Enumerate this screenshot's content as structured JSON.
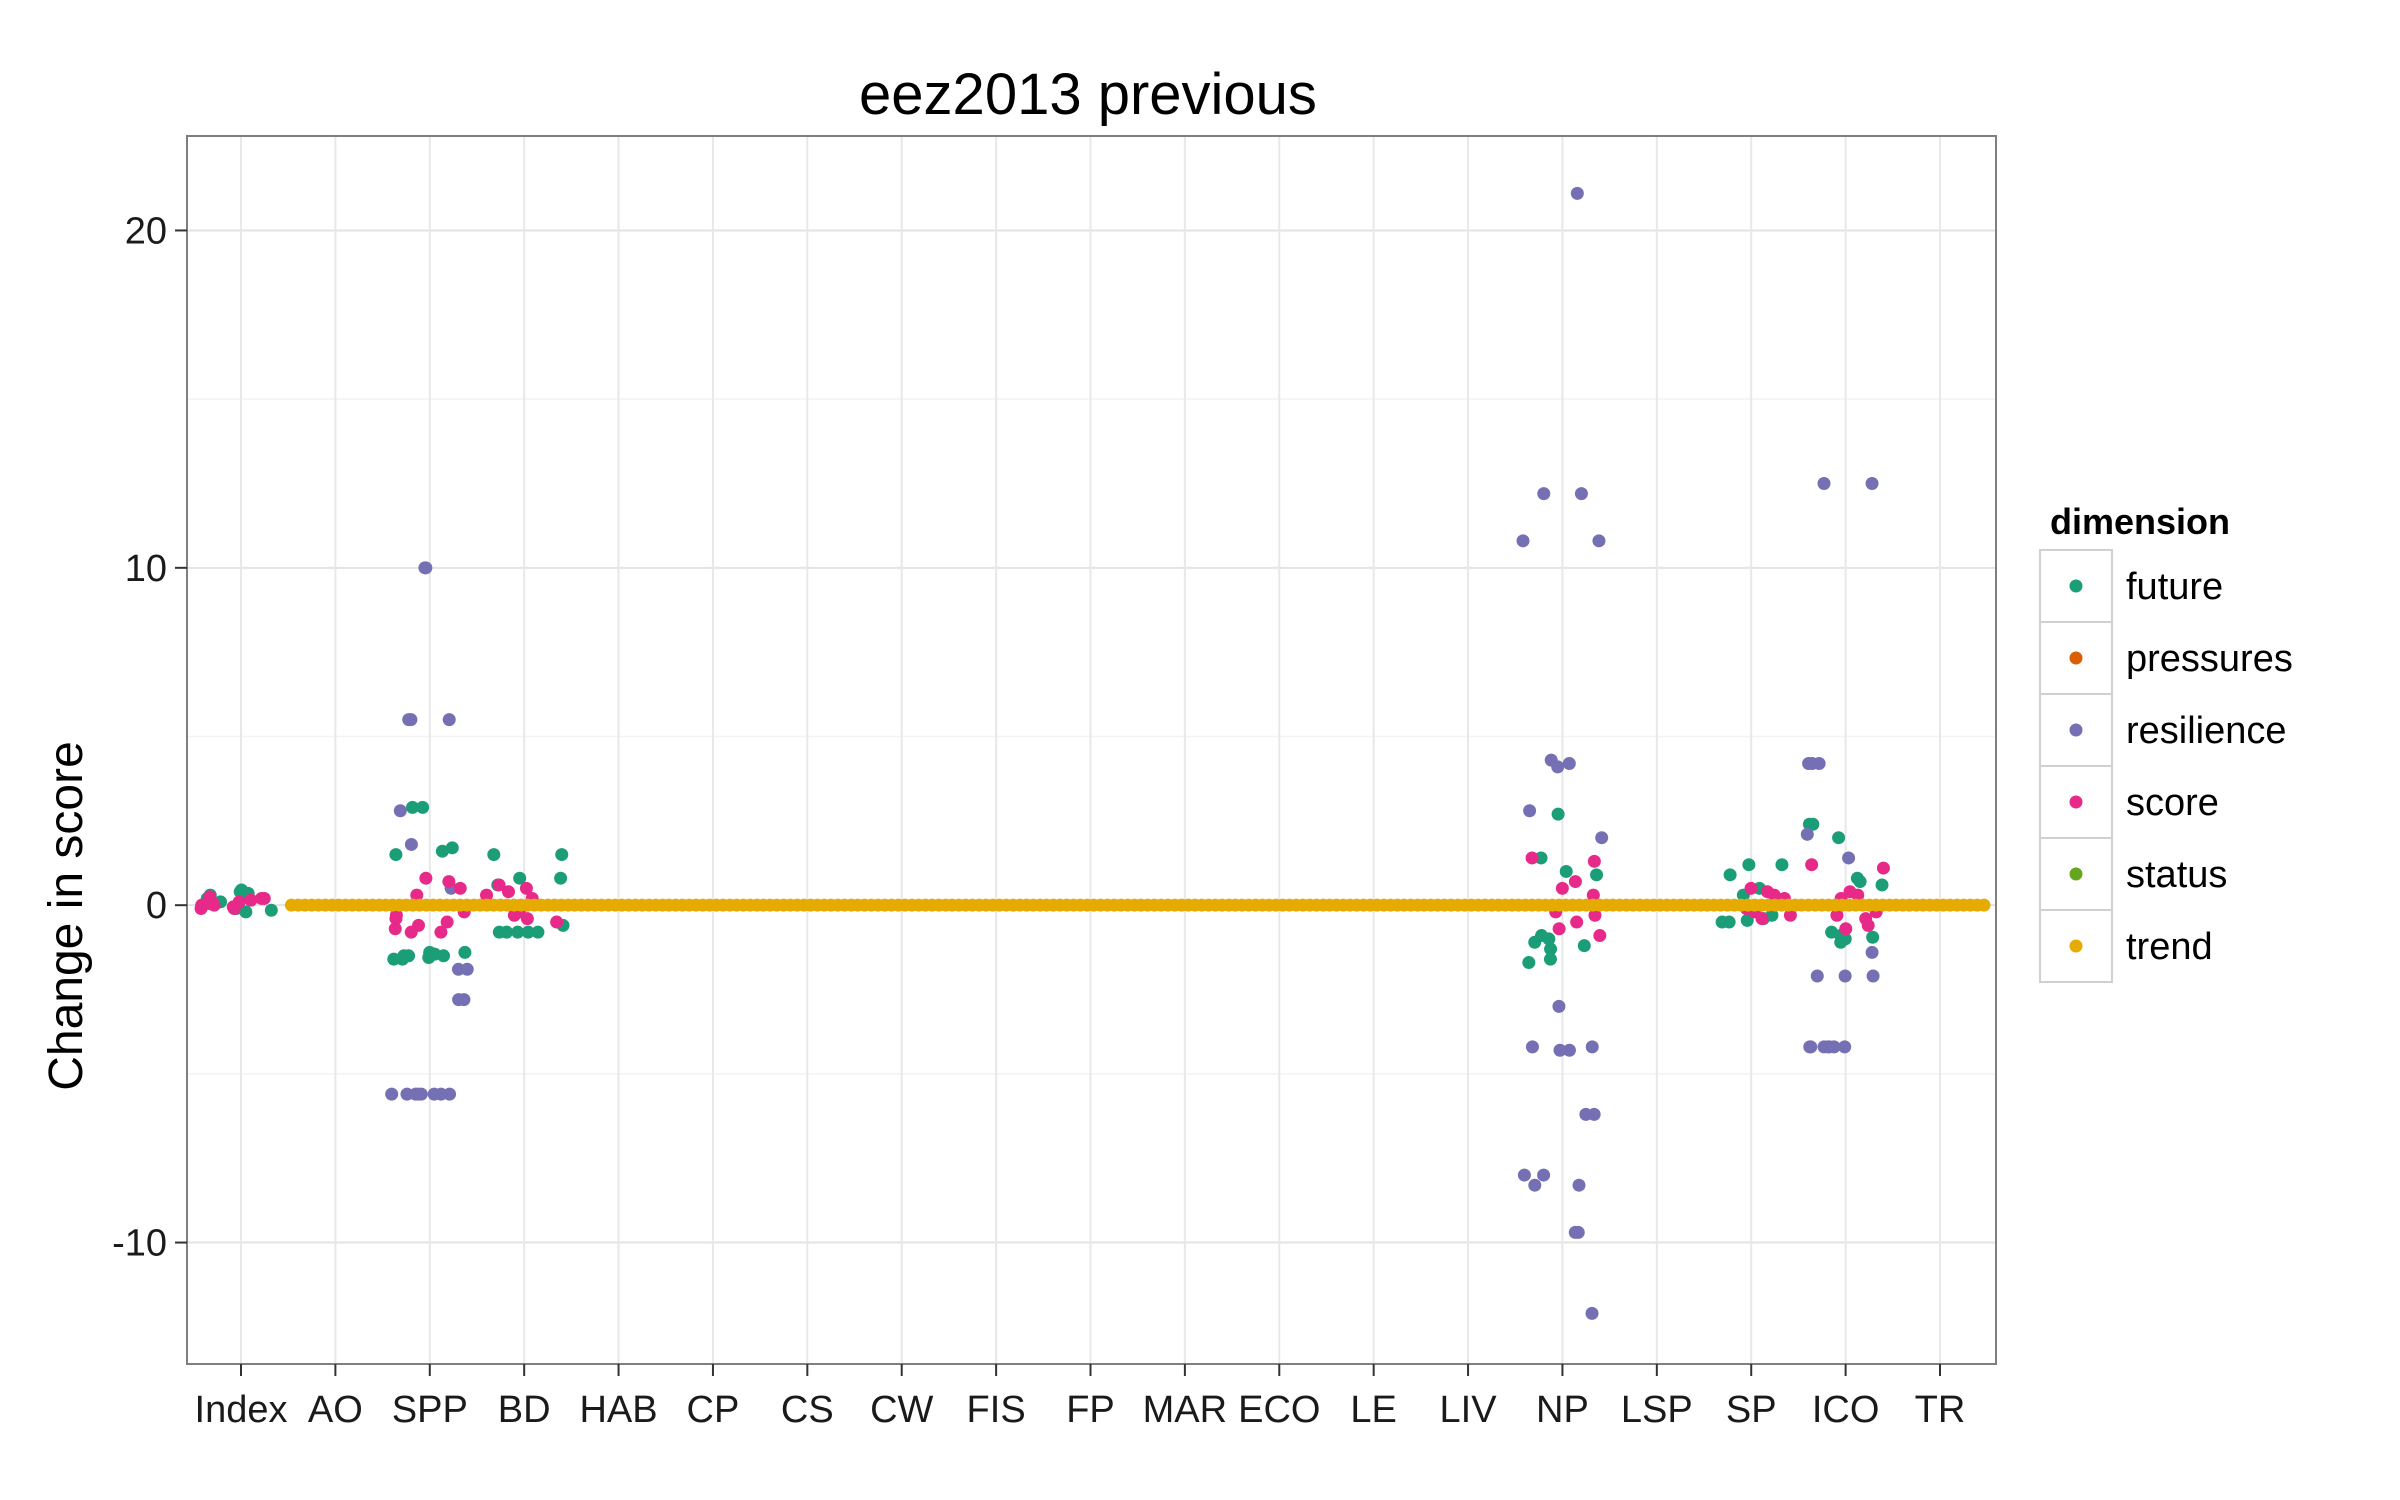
{
  "chart_data": {
    "type": "scatter",
    "title": "eez2013 previous",
    "xlabel": "",
    "ylabel": "Change in score",
    "ylim": [
      -13.6,
      22.8
    ],
    "yticks": [
      -10,
      0,
      10,
      20
    ],
    "grid": true,
    "legend_position": "right",
    "categories": [
      "Index",
      "AO",
      "SPP",
      "BD",
      "HAB",
      "CP",
      "CS",
      "CW",
      "FIS",
      "FP",
      "MAR",
      "ECO",
      "LE",
      "LIV",
      "NP",
      "LSP",
      "SP",
      "ICO",
      "TR"
    ],
    "legend": {
      "title": "dimension",
      "entries": [
        {
          "name": "future",
          "color": "#1b9e77"
        },
        {
          "name": "pressures",
          "color": "#d95f02"
        },
        {
          "name": "resilience",
          "color": "#7570b3"
        },
        {
          "name": "score",
          "color": "#e7298a"
        },
        {
          "name": "status",
          "color": "#66a61e"
        },
        {
          "name": "trend",
          "color": "#e6ab02"
        }
      ]
    },
    "series": [
      {
        "name": "future",
        "color": "#1b9e77",
        "points": [
          [
            "Index",
            0.4
          ],
          [
            "Index",
            -0.2
          ],
          [
            "Index",
            0.3
          ],
          [
            "Index",
            0.1
          ],
          [
            "Index",
            -0.1
          ],
          [
            "Index",
            0.45
          ],
          [
            "Index",
            0.2
          ],
          [
            "Index",
            -0.15
          ],
          [
            "Index",
            0.35
          ],
          [
            "SPP",
            2.9
          ],
          [
            "SPP",
            2.9
          ],
          [
            "SPP",
            1.7
          ],
          [
            "SPP",
            1.6
          ],
          [
            "SPP",
            1.5
          ],
          [
            "SPP",
            -1.4
          ],
          [
            "SPP",
            -1.5
          ],
          [
            "SPP",
            -1.5
          ],
          [
            "SPP",
            -1.6
          ],
          [
            "SPP",
            -1.45
          ],
          [
            "SPP",
            -1.55
          ],
          [
            "SPP",
            -1.5
          ],
          [
            "SPP",
            -1.6
          ],
          [
            "SPP",
            -1.4
          ],
          [
            "BD",
            1.5
          ],
          [
            "BD",
            1.5
          ],
          [
            "BD",
            0.8
          ],
          [
            "BD",
            0.8
          ],
          [
            "BD",
            -0.8
          ],
          [
            "BD",
            -0.8
          ],
          [
            "BD",
            -0.8
          ],
          [
            "BD",
            -0.8
          ],
          [
            "BD",
            -0.8
          ],
          [
            "BD",
            0.6
          ],
          [
            "BD",
            -0.6
          ],
          [
            "NP",
            2.7
          ],
          [
            "NP",
            1.4
          ],
          [
            "NP",
            1.0
          ],
          [
            "NP",
            -1.0
          ],
          [
            "NP",
            -1.1
          ],
          [
            "NP",
            -1.2
          ],
          [
            "NP",
            -1.3
          ],
          [
            "NP",
            -1.6
          ],
          [
            "NP",
            -1.7
          ],
          [
            "NP",
            0.9
          ],
          [
            "NP",
            -0.9
          ],
          [
            "SP",
            1.2
          ],
          [
            "SP",
            1.2
          ],
          [
            "SP",
            0.9
          ],
          [
            "SP",
            0.5
          ],
          [
            "SP",
            0.3
          ],
          [
            "SP",
            -0.3
          ],
          [
            "SP",
            -0.4
          ],
          [
            "SP",
            -0.5
          ],
          [
            "SP",
            -0.5
          ],
          [
            "SP",
            -0.45
          ],
          [
            "ICO",
            2.4
          ],
          [
            "ICO",
            2.4
          ],
          [
            "ICO",
            2.0
          ],
          [
            "ICO",
            0.7
          ],
          [
            "ICO",
            0.8
          ],
          [
            "ICO",
            0.6
          ],
          [
            "ICO",
            -0.8
          ],
          [
            "ICO",
            -0.9
          ],
          [
            "ICO",
            -1.0
          ],
          [
            "ICO",
            -1.1
          ],
          [
            "ICO",
            -0.95
          ]
        ]
      },
      {
        "name": "resilience",
        "color": "#7570b3",
        "points": [
          [
            "SPP",
            10.0
          ],
          [
            "SPP",
            10.0
          ],
          [
            "SPP",
            5.5
          ],
          [
            "SPP",
            5.5
          ],
          [
            "SPP",
            5.5
          ],
          [
            "SPP",
            2.8
          ],
          [
            "SPP",
            1.8
          ],
          [
            "SPP",
            0.5
          ],
          [
            "SPP",
            -1.9
          ],
          [
            "SPP",
            -1.9
          ],
          [
            "SPP",
            -2.8
          ],
          [
            "SPP",
            -2.8
          ],
          [
            "SPP",
            -5.6
          ],
          [
            "SPP",
            -5.6
          ],
          [
            "SPP",
            -5.6
          ],
          [
            "SPP",
            -5.6
          ],
          [
            "SPP",
            -5.6
          ],
          [
            "SPP",
            -5.6
          ],
          [
            "SPP",
            -5.6
          ],
          [
            "SPP",
            -5.6
          ],
          [
            "NP",
            21.1
          ],
          [
            "NP",
            12.2
          ],
          [
            "NP",
            12.2
          ],
          [
            "NP",
            10.8
          ],
          [
            "NP",
            10.8
          ],
          [
            "NP",
            4.3
          ],
          [
            "NP",
            4.2
          ],
          [
            "NP",
            4.1
          ],
          [
            "NP",
            2.8
          ],
          [
            "NP",
            2.0
          ],
          [
            "NP",
            -3.0
          ],
          [
            "NP",
            -4.2
          ],
          [
            "NP",
            -4.3
          ],
          [
            "NP",
            -4.3
          ],
          [
            "NP",
            -4.2
          ],
          [
            "NP",
            -6.2
          ],
          [
            "NP",
            -6.2
          ],
          [
            "NP",
            -8.0
          ],
          [
            "NP",
            -8.0
          ],
          [
            "NP",
            -8.3
          ],
          [
            "NP",
            -8.3
          ],
          [
            "NP",
            -9.7
          ],
          [
            "NP",
            -9.7
          ],
          [
            "NP",
            -12.1
          ],
          [
            "ICO",
            12.5
          ],
          [
            "ICO",
            12.5
          ],
          [
            "ICO",
            4.2
          ],
          [
            "ICO",
            4.2
          ],
          [
            "ICO",
            4.2
          ],
          [
            "ICO",
            2.1
          ],
          [
            "ICO",
            1.4
          ],
          [
            "ICO",
            -1.4
          ],
          [
            "ICO",
            -2.1
          ],
          [
            "ICO",
            -2.1
          ],
          [
            "ICO",
            -2.1
          ],
          [
            "ICO",
            -4.2
          ],
          [
            "ICO",
            -4.2
          ],
          [
            "ICO",
            -4.2
          ],
          [
            "ICO",
            -4.2
          ],
          [
            "ICO",
            -4.2
          ],
          [
            "ICO",
            -4.2
          ],
          [
            "ICO",
            -4.2
          ]
        ]
      },
      {
        "name": "score",
        "color": "#e7298a",
        "points": [
          [
            "Index",
            0.2
          ],
          [
            "Index",
            0.1
          ],
          [
            "Index",
            0.0
          ],
          [
            "Index",
            -0.1
          ],
          [
            "Index",
            0.15
          ],
          [
            "Index",
            0.05
          ],
          [
            "Index",
            -0.05
          ],
          [
            "Index",
            0.25
          ],
          [
            "Index",
            0.1
          ],
          [
            "Index",
            -0.1
          ],
          [
            "Index",
            0.0
          ],
          [
            "Index",
            0.2
          ],
          [
            "SPP",
            0.8
          ],
          [
            "SPP",
            0.7
          ],
          [
            "SPP",
            0.3
          ],
          [
            "SPP",
            -0.2
          ],
          [
            "SPP",
            -0.5
          ],
          [
            "SPP",
            -0.8
          ],
          [
            "SPP",
            -0.8
          ],
          [
            "SPP",
            -0.6
          ],
          [
            "SPP",
            -0.4
          ],
          [
            "SPP",
            0.5
          ],
          [
            "SPP",
            -0.3
          ],
          [
            "SPP",
            -0.7
          ],
          [
            "BD",
            0.6
          ],
          [
            "BD",
            0.4
          ],
          [
            "BD",
            0.3
          ],
          [
            "BD",
            0.2
          ],
          [
            "BD",
            -0.2
          ],
          [
            "BD",
            -0.3
          ],
          [
            "BD",
            -0.4
          ],
          [
            "BD",
            -0.5
          ],
          [
            "BD",
            0.5
          ],
          [
            "BD",
            -0.2
          ],
          [
            "NP",
            1.4
          ],
          [
            "NP",
            1.3
          ],
          [
            "NP",
            0.7
          ],
          [
            "NP",
            0.5
          ],
          [
            "NP",
            -0.3
          ],
          [
            "NP",
            -0.5
          ],
          [
            "NP",
            -0.7
          ],
          [
            "NP",
            -0.9
          ],
          [
            "NP",
            0.3
          ],
          [
            "NP",
            -0.2
          ],
          [
            "SP",
            0.5
          ],
          [
            "SP",
            0.4
          ],
          [
            "SP",
            0.3
          ],
          [
            "SP",
            0.2
          ],
          [
            "SP",
            -0.2
          ],
          [
            "SP",
            -0.3
          ],
          [
            "SP",
            -0.4
          ],
          [
            "SP",
            0.1
          ],
          [
            "SP",
            -0.1
          ],
          [
            "ICO",
            1.2
          ],
          [
            "ICO",
            1.1
          ],
          [
            "ICO",
            0.4
          ],
          [
            "ICO",
            0.3
          ],
          [
            "ICO",
            -0.3
          ],
          [
            "ICO",
            -0.4
          ],
          [
            "ICO",
            -0.6
          ],
          [
            "ICO",
            -0.7
          ],
          [
            "ICO",
            0.2
          ],
          [
            "ICO",
            -0.2
          ]
        ]
      },
      {
        "name": "trend",
        "color": "#e6ab02",
        "points": [
          [
            "AO",
            0
          ],
          [
            "SPP",
            0
          ],
          [
            "BD",
            0
          ],
          [
            "HAB",
            0
          ],
          [
            "CP",
            0
          ],
          [
            "CS",
            0
          ],
          [
            "CW",
            0
          ],
          [
            "FIS",
            0
          ],
          [
            "FP",
            0
          ],
          [
            "MAR",
            0
          ],
          [
            "ECO",
            0
          ],
          [
            "LE",
            0
          ],
          [
            "LIV",
            0
          ],
          [
            "NP",
            0
          ],
          [
            "LSP",
            0
          ],
          [
            "SP",
            0
          ],
          [
            "ICO",
            0
          ],
          [
            "TR",
            0
          ]
        ]
      }
    ]
  }
}
